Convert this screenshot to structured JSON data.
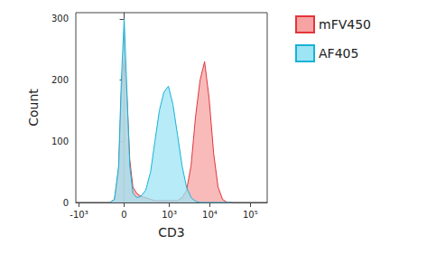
{
  "chart_data": {
    "type": "histogram",
    "x_label": "CD3",
    "y_label": "Count",
    "x": [
      -140,
      -90,
      -50,
      -25,
      0,
      25,
      50,
      80,
      120,
      170,
      240,
      330,
      430,
      560,
      730,
      950,
      1230,
      1600,
      2070,
      2670,
      3450,
      4450,
      5760,
      7440,
      9620,
      12450,
      16000,
      20700,
      26800,
      34600
    ],
    "series": [
      {
        "name": "mFV450",
        "color": "#f7a3a3",
        "values": [
          0,
          5,
          50,
          180,
          240,
          170,
          70,
          25,
          15,
          10,
          8,
          5,
          3,
          3,
          3,
          3,
          3,
          3,
          8,
          20,
          60,
          140,
          200,
          230,
          170,
          80,
          25,
          5,
          0,
          0
        ]
      },
      {
        "name": "AF405",
        "color": "#9de4f4",
        "values": [
          0,
          5,
          60,
          200,
          300,
          180,
          60,
          15,
          8,
          10,
          20,
          50,
          100,
          150,
          180,
          190,
          160,
          110,
          60,
          25,
          8,
          2,
          0,
          0,
          0,
          0,
          0,
          0,
          0,
          0
        ]
      }
    ],
    "xlim": [
      -1200,
      260000
    ],
    "xticks": [
      {
        "value": -1000,
        "label": "-10³"
      },
      0,
      {
        "value": 1000,
        "label": "10³"
      },
      {
        "value": 10000,
        "label": "10⁴"
      },
      {
        "value": 100000,
        "label": "10⁵"
      }
    ],
    "ylim": [
      0,
      310
    ],
    "yticks": [
      0,
      100,
      200,
      300
    ],
    "grid": false,
    "legend": "top-right"
  }
}
